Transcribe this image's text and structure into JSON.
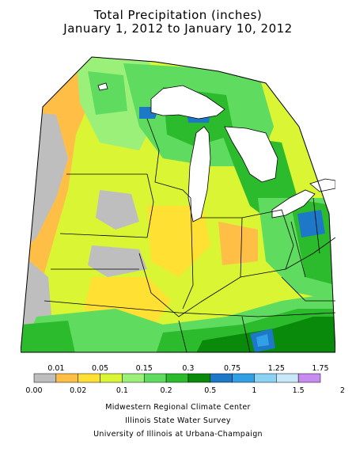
{
  "title": {
    "line1": "Total Precipitation (inches)",
    "line2": "January 1, 2012 to January 10, 2012"
  },
  "legend": {
    "bins": [
      {
        "color": "#bebebe"
      },
      {
        "color": "#ffbf47"
      },
      {
        "color": "#ffe033"
      },
      {
        "color": "#d9f533"
      },
      {
        "color": "#9bf07a"
      },
      {
        "color": "#5fdc5f"
      },
      {
        "color": "#2cbb2c"
      },
      {
        "color": "#0a8a0a"
      },
      {
        "color": "#1e78c8"
      },
      {
        "color": "#32a0e6"
      },
      {
        "color": "#8cd2f5"
      },
      {
        "color": "#c8e8fa"
      },
      {
        "color": "#c88cf0"
      }
    ],
    "upper_labels": [
      "0.01",
      "0.05",
      "0.15",
      "0.3",
      "0.75",
      "1.25",
      "1.75"
    ],
    "lower_labels": [
      "0.00",
      "0.02",
      "0.1",
      "0.2",
      "0.5",
      "1",
      "1.5",
      "2"
    ]
  },
  "credits": {
    "line1": "Midwestern Regional Climate Center",
    "line2": "Illinois State Water Survey",
    "line3": "University of Illinois at Urbana-Champaign"
  },
  "colors": {
    "no_data": "#bebebe",
    "lake": "#ffffff",
    "outside": "#ffffff",
    "border": "#000000"
  }
}
